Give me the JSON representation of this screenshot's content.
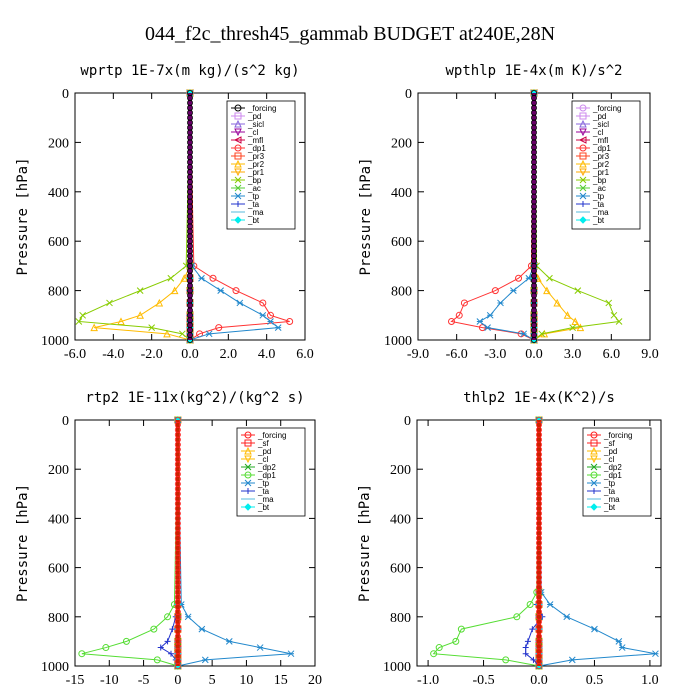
{
  "figure": {
    "title": "044_f2c_thresh45_gammab  BUDGET at240E,28N"
  },
  "colors": {
    "_forcing_black": "#000000",
    "_forcing_red": "#ff2020",
    "_sf": "#ff2020",
    "_pd": "#cc88ee",
    "_sicl": "#8866dd",
    "_cl": "#990099",
    "_mfl": "#cc0044",
    "_dp1": "#ff3333",
    "_pr3": "#ff4422",
    "_pr2": "#ffbb00",
    "_pr1": "#ffaa00",
    "_bp": "#88cc00",
    "_ac": "#55cc33",
    "_tp": "#2288cc",
    "_ta": "#2233cc",
    "_ma": "#55bbdd",
    "_bt": "#00eeee",
    "_dp2": "#22aa22",
    "_dp1_green": "#55dd33"
  },
  "chart_data": [
    {
      "type": "line",
      "title": "wprtp  1E-7x(m kg)/(s^2 kg)",
      "ylabel": "Pressure [hPa]",
      "xlabel": "",
      "xlim": [
        -6.0,
        6.0
      ],
      "ylim": [
        1000,
        0
      ],
      "xticks": [
        "-6.0",
        "-4.0",
        "-2.0",
        "0.0",
        "2.0",
        "4.0",
        "6.0"
      ],
      "yticks": [
        "0",
        "200",
        "400",
        "600",
        "800",
        "1000"
      ],
      "legend_position": "top-right",
      "pressure": [
        0,
        700,
        750,
        800,
        850,
        900,
        925,
        950,
        975,
        1000
      ],
      "series": [
        {
          "name": "_forcing",
          "color": "#000000",
          "marker": "o",
          "x": [
            0,
            0,
            0,
            0,
            0,
            0,
            0,
            0,
            0,
            0
          ]
        },
        {
          "name": "_pd",
          "color": "#cc88ee",
          "marker": "s",
          "x": [
            0,
            0,
            0,
            0,
            0,
            0,
            0,
            0,
            0,
            0
          ]
        },
        {
          "name": "_sicl",
          "color": "#8866dd",
          "marker": "^",
          "x": [
            0,
            0,
            0,
            0,
            0,
            0,
            0,
            0,
            0,
            0
          ]
        },
        {
          "name": "_cl",
          "color": "#990099",
          "marker": "v",
          "x": [
            0,
            0,
            0,
            0,
            0,
            0,
            0,
            0,
            0,
            0
          ]
        },
        {
          "name": "_mfl",
          "color": "#cc0044",
          "marker": "<",
          "x": [
            0,
            0,
            0,
            0,
            0,
            0,
            0,
            0,
            0,
            0
          ]
        },
        {
          "name": "_dp1",
          "color": "#ff3333",
          "marker": "o",
          "x": [
            0,
            0.2,
            1.2,
            2.4,
            3.8,
            4.2,
            5.2,
            1.5,
            0.5,
            0
          ]
        },
        {
          "name": "_pr3",
          "color": "#ff4422",
          "marker": "s",
          "x": [
            0,
            0,
            0,
            0,
            0,
            0,
            0,
            0,
            0,
            0
          ]
        },
        {
          "name": "_pr2",
          "color": "#ffbb00",
          "marker": "^",
          "x": [
            0,
            0,
            -0.3,
            -0.8,
            -1.6,
            -2.6,
            -3.6,
            -5.0,
            -1.2,
            0
          ]
        },
        {
          "name": "_pr1",
          "color": "#ffaa00",
          "marker": "v",
          "x": [
            0,
            0,
            0,
            0,
            0,
            0,
            0,
            0,
            0,
            0
          ]
        },
        {
          "name": "_bp",
          "color": "#88cc00",
          "marker": "x",
          "x": [
            0,
            -0.2,
            -1.0,
            -2.6,
            -4.2,
            -5.6,
            -5.8,
            -2.0,
            -0.4,
            0
          ]
        },
        {
          "name": "_ac",
          "color": "#55cc33",
          "marker": "x",
          "x": [
            0,
            0,
            0,
            0,
            0,
            0,
            0,
            0,
            0,
            0
          ]
        },
        {
          "name": "_tp",
          "color": "#2288cc",
          "marker": "*",
          "x": [
            0,
            0.1,
            0.6,
            1.6,
            2.6,
            3.8,
            4.2,
            4.6,
            1.0,
            0
          ]
        },
        {
          "name": "_ta",
          "color": "#2233cc",
          "marker": "+",
          "x": [
            0,
            0,
            0,
            0,
            0,
            0,
            0,
            0,
            0,
            0
          ]
        },
        {
          "name": "_ma",
          "color": "#55bbdd",
          "marker": "-",
          "x": [
            0,
            0,
            0,
            0,
            0,
            0,
            0,
            0,
            0,
            0
          ]
        },
        {
          "name": "_bt",
          "color": "#00eeee",
          "marker": "D",
          "x": [
            0,
            0,
            0,
            0,
            0,
            0,
            0,
            0,
            0,
            0
          ]
        }
      ]
    },
    {
      "type": "line",
      "title": "wpthlp  1E-4x(m K)/s^2",
      "ylabel": "Pressure [hPa]",
      "xlabel": "",
      "xlim": [
        -9.0,
        9.0
      ],
      "ylim": [
        1000,
        0
      ],
      "xticks": [
        "-9.0",
        "-6.0",
        "-3.0",
        "0.0",
        "3.0",
        "6.0",
        "9.0"
      ],
      "yticks": [
        "0",
        "200",
        "400",
        "600",
        "800",
        "1000"
      ],
      "legend_position": "top-right",
      "pressure": [
        0,
        700,
        750,
        800,
        850,
        900,
        925,
        950,
        975,
        1000
      ],
      "series": [
        {
          "name": "_forcing",
          "color": "#cc88ee",
          "marker": "o",
          "x": [
            0,
            0,
            0,
            0,
            0,
            0,
            0,
            0,
            0,
            0
          ]
        },
        {
          "name": "_pd",
          "color": "#cc88ee",
          "marker": "s",
          "x": [
            0,
            0,
            0,
            0,
            0,
            0,
            0,
            0,
            0,
            0
          ]
        },
        {
          "name": "_sicl",
          "color": "#8866dd",
          "marker": "^",
          "x": [
            0,
            0,
            0,
            0,
            0,
            0,
            0,
            0,
            0,
            0
          ]
        },
        {
          "name": "_cl",
          "color": "#990099",
          "marker": "v",
          "x": [
            0,
            0,
            0,
            0,
            0,
            0,
            0,
            0,
            0,
            0
          ]
        },
        {
          "name": "_mfl",
          "color": "#cc0044",
          "marker": "<",
          "x": [
            0,
            0,
            0,
            0,
            0,
            0,
            0,
            0,
            0,
            0
          ]
        },
        {
          "name": "_dp1",
          "color": "#ff3333",
          "marker": "o",
          "x": [
            0,
            -0.2,
            -1.2,
            -3.0,
            -5.4,
            -5.8,
            -6.4,
            -4.0,
            -1.0,
            0
          ]
        },
        {
          "name": "_pr3",
          "color": "#ff4422",
          "marker": "s",
          "x": [
            0,
            0,
            0,
            0,
            0,
            0,
            0,
            0,
            0,
            0
          ]
        },
        {
          "name": "_pr2",
          "color": "#ffbb00",
          "marker": "^",
          "x": [
            0,
            0,
            0.3,
            1.0,
            1.8,
            2.6,
            3.2,
            3.6,
            0.8,
            0
          ]
        },
        {
          "name": "_pr1",
          "color": "#ffaa00",
          "marker": "v",
          "x": [
            0,
            0,
            0,
            0,
            0,
            0,
            0,
            0,
            0,
            0
          ]
        },
        {
          "name": "_bp",
          "color": "#88cc00",
          "marker": "x",
          "x": [
            0,
            0.2,
            1.2,
            3.4,
            5.8,
            6.2,
            6.6,
            3.0,
            0.6,
            0
          ]
        },
        {
          "name": "_ac",
          "color": "#55cc33",
          "marker": "x",
          "x": [
            0,
            0,
            0,
            0,
            0,
            0,
            0,
            0,
            0,
            0
          ]
        },
        {
          "name": "_tp",
          "color": "#2288cc",
          "marker": "*",
          "x": [
            0,
            0,
            -0.4,
            -1.6,
            -2.6,
            -3.4,
            -4.2,
            -3.6,
            -0.8,
            0
          ]
        },
        {
          "name": "_ta",
          "color": "#2233cc",
          "marker": "+",
          "x": [
            0,
            0,
            0,
            0,
            0,
            0,
            0,
            0,
            0,
            0
          ]
        },
        {
          "name": "_ma",
          "color": "#55bbdd",
          "marker": "-",
          "x": [
            0,
            0,
            0,
            0,
            0,
            0,
            0,
            0,
            0,
            0
          ]
        },
        {
          "name": "_bt",
          "color": "#00eeee",
          "marker": "D",
          "x": [
            0,
            0,
            0,
            0,
            0,
            0,
            0,
            0,
            0,
            0
          ]
        }
      ]
    },
    {
      "type": "line",
      "title": "rtp2  1E-11x(kg^2)/(kg^2 s)",
      "ylabel": "Pressure [hPa]",
      "xlabel": "",
      "xlim": [
        -15,
        20
      ],
      "ylim": [
        1000,
        0
      ],
      "xticks": [
        "-15",
        "-10",
        "-5",
        "0",
        "5",
        "10",
        "15",
        "20"
      ],
      "yticks": [
        "0",
        "200",
        "400",
        "600",
        "800",
        "1000"
      ],
      "legend_position": "top-right",
      "pressure": [
        0,
        750,
        800,
        850,
        900,
        925,
        950,
        975,
        1000
      ],
      "series": [
        {
          "name": "_forcing",
          "color": "#ff2020",
          "marker": "o",
          "x": [
            0,
            0,
            0,
            0,
            0,
            0,
            0,
            0,
            0
          ]
        },
        {
          "name": "_sf",
          "color": "#ff2020",
          "marker": "s",
          "x": [
            0,
            0,
            0,
            0,
            0,
            0,
            0,
            0,
            0
          ]
        },
        {
          "name": "_pd",
          "color": "#ffbb00",
          "marker": "^",
          "x": [
            0,
            0,
            0,
            0,
            0,
            0,
            0,
            0,
            0
          ]
        },
        {
          "name": "_cl",
          "color": "#ffbb00",
          "marker": "v",
          "x": [
            0,
            0,
            0,
            0,
            0,
            0,
            0,
            0,
            0
          ]
        },
        {
          "name": "_dp2",
          "color": "#22aa22",
          "marker": "x",
          "x": [
            0,
            0,
            0,
            0,
            0,
            0,
            0,
            0,
            0
          ]
        },
        {
          "name": "_dp1",
          "color": "#55dd33",
          "marker": "o",
          "x": [
            0,
            -0.5,
            -1.5,
            -3.5,
            -7.5,
            -10.5,
            -14.0,
            -3.0,
            0
          ]
        },
        {
          "name": "_tp",
          "color": "#2288cc",
          "marker": "*",
          "x": [
            0,
            0.5,
            1.5,
            3.5,
            7.5,
            12.0,
            16.5,
            4.0,
            0
          ]
        },
        {
          "name": "_ta",
          "color": "#2233cc",
          "marker": "+",
          "x": [
            0,
            0,
            -0.3,
            -0.8,
            -1.5,
            -2.5,
            -1.0,
            -0.3,
            0
          ]
        },
        {
          "name": "_ma",
          "color": "#55bbdd",
          "marker": "-",
          "x": [
            0,
            0,
            0,
            0,
            0,
            0,
            0,
            0,
            0
          ]
        },
        {
          "name": "_bt",
          "color": "#00eeee",
          "marker": "D",
          "x": [
            0,
            0,
            0,
            0,
            0,
            0,
            0,
            0,
            0
          ]
        }
      ]
    },
    {
      "type": "line",
      "title": "thlp2  1E-4x(K^2)/s",
      "ylabel": "Pressure [hPa]",
      "xlabel": "",
      "xlim": [
        -1.1,
        1.1
      ],
      "ylim": [
        1000,
        0
      ],
      "xticks": [
        "-1.0",
        "-0.5",
        "0.0",
        "0.5",
        "1.0"
      ],
      "yticks": [
        "0",
        "200",
        "400",
        "600",
        "800",
        "1000"
      ],
      "legend_position": "top-right",
      "pressure": [
        0,
        700,
        750,
        800,
        850,
        900,
        925,
        950,
        975,
        1000
      ],
      "series": [
        {
          "name": "_forcing",
          "color": "#ff2020",
          "marker": "o",
          "x": [
            0,
            0,
            0,
            0,
            0,
            0,
            0,
            0,
            0,
            0
          ]
        },
        {
          "name": "_sf",
          "color": "#ff2020",
          "marker": "s",
          "x": [
            0,
            0,
            0,
            0,
            0,
            0,
            0,
            0,
            0,
            0
          ]
        },
        {
          "name": "_pd",
          "color": "#ffbb00",
          "marker": "^",
          "x": [
            0,
            0,
            0,
            0,
            0,
            0,
            0,
            0,
            0,
            0
          ]
        },
        {
          "name": "_cl",
          "color": "#ffbb00",
          "marker": "v",
          "x": [
            0,
            0,
            0,
            0,
            0,
            0,
            0,
            0,
            0,
            0
          ]
        },
        {
          "name": "_dp2",
          "color": "#22aa22",
          "marker": "x",
          "x": [
            0,
            0,
            0,
            0,
            0,
            0,
            0,
            0,
            0,
            0
          ]
        },
        {
          "name": "_dp1",
          "color": "#55dd33",
          "marker": "o",
          "x": [
            0,
            -0.02,
            -0.08,
            -0.2,
            -0.7,
            -0.75,
            -0.9,
            -0.95,
            -0.3,
            0
          ]
        },
        {
          "name": "_tp",
          "color": "#2288cc",
          "marker": "*",
          "x": [
            0,
            0.02,
            0.1,
            0.25,
            0.5,
            0.72,
            0.75,
            1.05,
            0.3,
            0
          ]
        },
        {
          "name": "_ta",
          "color": "#2233cc",
          "marker": "+",
          "x": [
            0,
            0,
            -0.02,
            0.03,
            -0.06,
            -0.1,
            -0.12,
            -0.12,
            -0.05,
            0
          ]
        },
        {
          "name": "_ma",
          "color": "#55bbdd",
          "marker": "-",
          "x": [
            0,
            0,
            0,
            0,
            0,
            0,
            0,
            0,
            0,
            0
          ]
        },
        {
          "name": "_bt",
          "color": "#00eeee",
          "marker": "D",
          "x": [
            0,
            0,
            0,
            0,
            0,
            0,
            0,
            0,
            0,
            0
          ]
        }
      ]
    }
  ]
}
